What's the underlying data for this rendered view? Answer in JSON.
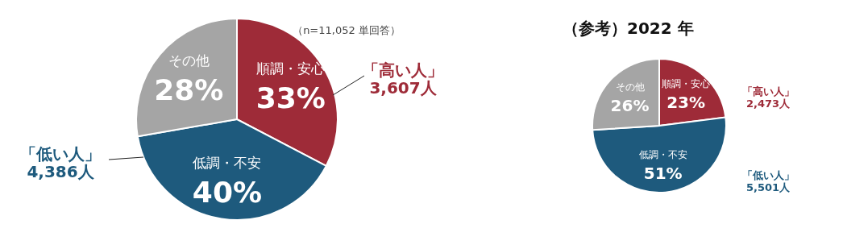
{
  "chart_data": [
    {
      "type": "pie",
      "categories": [
        "順調・安心",
        "低調・不安",
        "その他"
      ],
      "values": [
        33,
        40,
        28
      ],
      "colors": [
        "#9e2b38",
        "#1e5a7d",
        "#a5a5a5"
      ],
      "value_labels": [
        "33%",
        "40%",
        "28%"
      ],
      "annotations": [
        "（n=11,052 単回答）",
        "「高い人」\n3,607人",
        "「低い人」\n4,386人"
      ]
    },
    {
      "type": "pie",
      "title": "（参考）2022 年",
      "categories": [
        "順調・安心",
        "低調・不安",
        "その他"
      ],
      "values": [
        23,
        51,
        26
      ],
      "colors": [
        "#9e2b38",
        "#1e5a7d",
        "#a5a5a5"
      ],
      "value_labels": [
        "23%",
        "51%",
        "26%"
      ],
      "annotations": [
        "「高い人」\n2,473人",
        "「低い人」\n5,501人"
      ]
    }
  ]
}
